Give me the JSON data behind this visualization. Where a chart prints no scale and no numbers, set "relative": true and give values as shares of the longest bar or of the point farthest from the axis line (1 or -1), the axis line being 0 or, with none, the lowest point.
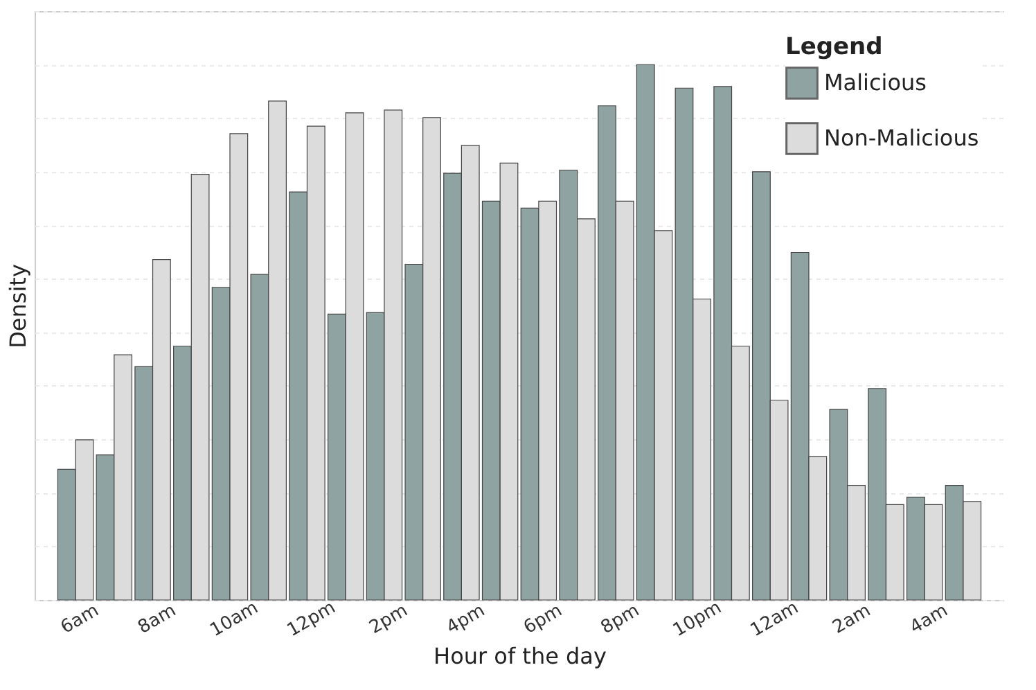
{
  "chart_data": {
    "type": "bar",
    "xlabel": "Hour of the day",
    "ylabel": "Density",
    "legend_title": "Legend",
    "relative": true,
    "categories": [
      "6am",
      null,
      "8am",
      null,
      "10am",
      null,
      "12pm",
      null,
      "2pm",
      null,
      "4pm",
      null,
      "6pm",
      null,
      "8pm",
      null,
      "10pm",
      null,
      "12am",
      null,
      "2am",
      null,
      "4am",
      null
    ],
    "series": [
      {
        "name": "Malicious",
        "color": "#8fa3a3",
        "values": [
          0.244,
          0.271,
          0.436,
          0.474,
          0.584,
          0.608,
          0.762,
          0.534,
          0.537,
          0.627,
          0.797,
          0.745,
          0.732,
          0.803,
          0.923,
          1,
          0.956,
          0.959,
          0.8,
          0.649,
          0.356,
          0.395,
          0.192,
          0.214
        ]
      },
      {
        "name": "Non-Malicious",
        "color": "#dcdcdc",
        "values": [
          0.299,
          0.458,
          0.636,
          0.795,
          0.871,
          0.932,
          0.885,
          0.91,
          0.915,
          0.901,
          0.849,
          0.816,
          0.745,
          0.712,
          0.745,
          0.69,
          0.562,
          0.474,
          0.373,
          0.268,
          0.214,
          0.178,
          0.178,
          0.184
        ]
      }
    ],
    "grid": "y",
    "legend": "top right"
  }
}
